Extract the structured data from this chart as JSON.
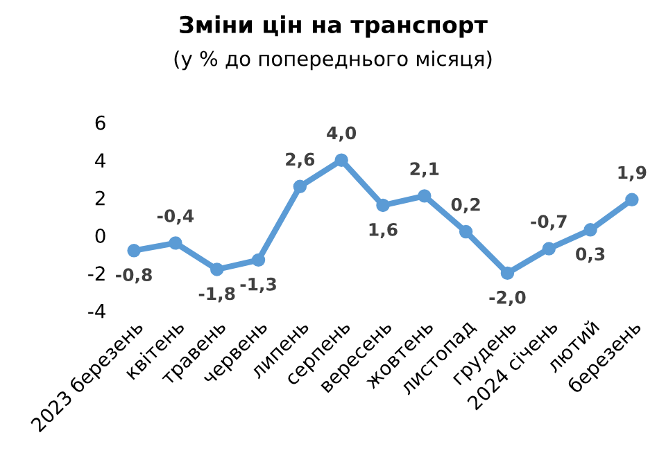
{
  "chart_data": {
    "type": "line",
    "title": "Зміни цін на транспорт",
    "subtitle": "(у % до попереднього місяця)",
    "categories": [
      "2023 березень",
      "квітень",
      "травень",
      "червень",
      "липень",
      "серпень",
      "вересень",
      "жовтень",
      "листопад",
      "грудень",
      "2024 січень",
      "лютий",
      "березень"
    ],
    "series": [
      {
        "color": "#5b9bd5",
        "values": [
          -0.8,
          -0.4,
          -1.8,
          -1.3,
          2.6,
          4.0,
          1.6,
          2.1,
          0.2,
          -2.0,
          -0.7,
          0.3,
          1.9
        ],
        "value_labels": [
          "-0,8",
          "-0,4",
          "-1,8",
          "-1,3",
          "2,6",
          "4,0",
          "1,6",
          "2,1",
          "0,2",
          "-2,0",
          "-0,7",
          "0,3",
          "1,9"
        ]
      }
    ],
    "ylim": [
      -4,
      6
    ],
    "yticks": [
      -4,
      -2,
      0,
      2,
      4,
      6
    ],
    "grid": false,
    "legend": false,
    "marker": "circle",
    "line_style": "solid"
  }
}
